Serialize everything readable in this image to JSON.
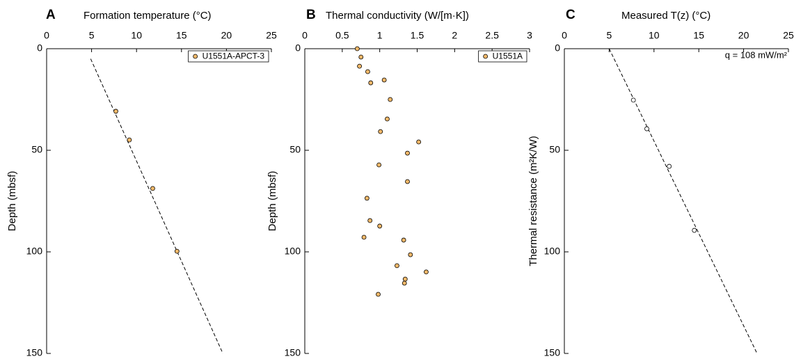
{
  "chart_data": [
    {
      "type": "scatter",
      "panel_label": "A",
      "title": "Formation temperature (°C)",
      "ylabel": "Depth (mbsf)",
      "xlim": [
        0,
        25
      ],
      "xticks": [
        0,
        5,
        10,
        15,
        20,
        25
      ],
      "ylim": [
        0,
        150
      ],
      "yticks": [
        0,
        50,
        100,
        150
      ],
      "y_inverted": true,
      "legend": "upper right",
      "series": [
        {
          "name": "U1551A-APCT-3",
          "color": "#f2b96a",
          "x": [
            7.7,
            9.2,
            11.8,
            14.5
          ],
          "values": [
            30.8,
            44.9,
            68.8,
            99.7
          ]
        }
      ],
      "trend_line": {
        "x": [
          4.9,
          19.6
        ],
        "y": [
          5,
          150
        ],
        "style": "dashed"
      }
    },
    {
      "type": "scatter",
      "panel_label": "B",
      "title": "Thermal conductivity (W/[m·K])",
      "ylabel": "Depth (mbsf)",
      "xlim": [
        0,
        3
      ],
      "xticks": [
        0,
        0.5,
        1,
        1.5,
        2,
        2.5,
        3
      ],
      "ylim": [
        0,
        150
      ],
      "yticks": [
        0,
        50,
        100,
        150
      ],
      "y_inverted": true,
      "legend": "upper right",
      "series": [
        {
          "name": "U1551A",
          "color": "#f2b96a",
          "x": [
            0.7,
            0.75,
            0.73,
            0.84,
            1.06,
            0.88,
            1.14,
            1.1,
            1.01,
            1.52,
            1.37,
            0.99,
            1.37,
            0.83,
            0.87,
            1.0,
            1.32,
            0.79,
            1.41,
            1.23,
            1.62,
            1.34,
            1.33,
            0.98
          ],
          "values": [
            0,
            4.1,
            8.6,
            11.3,
            15.4,
            16.8,
            25,
            34.6,
            40.8,
            45.9,
            51.4,
            57.2,
            65.4,
            73.6,
            84.6,
            87.3,
            94.2,
            92.8,
            101.4,
            106.8,
            109.9,
            113.4,
            115.4,
            120.9
          ]
        }
      ]
    },
    {
      "type": "scatter",
      "panel_label": "C",
      "title": "Measured T(z) (°C)",
      "ylabel": "Thermal resistance (m²K/W)",
      "xlim": [
        0,
        25
      ],
      "xticks": [
        0,
        5,
        10,
        15,
        20,
        25
      ],
      "ylim": [
        0,
        150
      ],
      "yticks": [
        0,
        50,
        100,
        150
      ],
      "y_inverted": true,
      "annotation": "q = 108 mW/m²",
      "series": [
        {
          "color": "#ffffff",
          "x": [
            7.7,
            9.2,
            11.7,
            14.5
          ],
          "values": [
            25.3,
            39.4,
            57.9,
            89.4
          ]
        }
      ],
      "trend_line": {
        "x": [
          5,
          21.5
        ],
        "y": [
          0,
          150
        ],
        "style": "dashed"
      }
    }
  ]
}
